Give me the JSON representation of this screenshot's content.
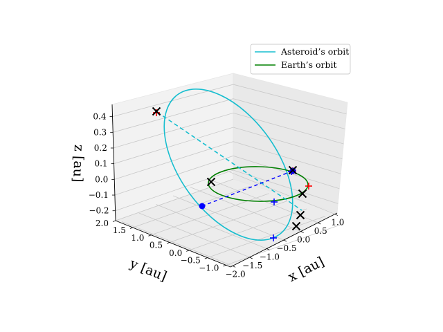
{
  "chart_data": {
    "type": "3d-line",
    "title": "",
    "axes": {
      "x": {
        "label": "x [au]",
        "ticks": [
          "−2.0",
          "−1.5",
          "−1.0",
          "−0.5",
          "0.0",
          "0.5",
          "1.0"
        ],
        "range": [
          -2.0,
          1.0
        ]
      },
      "y": {
        "label": "y [au]",
        "ticks": [
          "2.0",
          "1.5",
          "1.0",
          "0.5",
          "0.0",
          "−0.5",
          "−1.0"
        ],
        "range": [
          -1.0,
          2.0
        ]
      },
      "z": {
        "label": "z [au]",
        "ticks": [
          "0.4",
          "0.3",
          "0.2",
          "0.1",
          "0.0",
          "−0.1",
          "−0.2"
        ],
        "range": [
          -0.2,
          0.45
        ]
      }
    },
    "grid": true,
    "legend": {
      "placement": "upper-right",
      "entries": [
        {
          "label": "Asteroid’s orbit",
          "color": "#17becf"
        },
        {
          "label": "Earth’s orbit",
          "color": "#008000"
        }
      ]
    },
    "series": [
      {
        "name": "Asteroid’s orbit",
        "kind": "ellipse",
        "color": "#17becf"
      },
      {
        "name": "Earth’s orbit",
        "kind": "ellipse",
        "color": "#008000"
      },
      {
        "kind": "dashed-line",
        "color": "#17becf"
      },
      {
        "kind": "dashed-line",
        "color": "#0000ff"
      }
    ],
    "markers": {
      "black_x": 6,
      "red_plus": 3,
      "blue_plus": 3,
      "blue_dot": 2
    },
    "colors": {
      "asteroid": "#17becf",
      "earth": "#008000",
      "blue": "#0000ff",
      "red": "#ff0000",
      "black": "#000000"
    }
  }
}
